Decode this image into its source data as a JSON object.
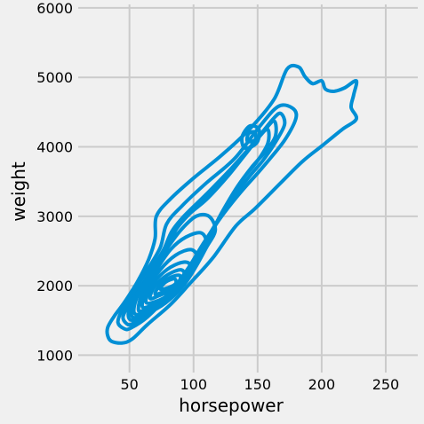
{
  "chart_data": {
    "type": "kde-contour",
    "title": "",
    "xlabel": "horsepower",
    "ylabel": "weight",
    "xlim": [
      10,
      275
    ],
    "ylim": [
      750,
      6050
    ],
    "x_ticks": [
      50,
      100,
      150,
      200,
      250
    ],
    "y_ticks": [
      1000,
      2000,
      3000,
      4000,
      5000,
      6000
    ],
    "grid": true,
    "line_color": "#008fd5",
    "grid_color": "#cbcbcb",
    "background_color": "#f0f0f0",
    "contour_levels": [
      {
        "level": 1,
        "points": [
          [
            44,
            1175
          ],
          [
            36,
            1200
          ],
          [
            33,
            1280
          ],
          [
            33,
            1400
          ],
          [
            38,
            1560
          ],
          [
            46,
            1760
          ],
          [
            56,
            2050
          ],
          [
            65,
            2380
          ],
          [
            70,
            2680
          ],
          [
            71,
            3000
          ],
          [
            82,
            3250
          ],
          [
            100,
            3550
          ],
          [
            122,
            3880
          ],
          [
            145,
            4280
          ],
          [
            163,
            4690
          ],
          [
            173,
            5120
          ],
          [
            182,
            5150
          ],
          [
            187,
            5010
          ],
          [
            193,
            4910
          ],
          [
            200,
            4950
          ],
          [
            203,
            4830
          ],
          [
            210,
            4800
          ],
          [
            218,
            4850
          ],
          [
            227,
            4950
          ],
          [
            225,
            4750
          ],
          [
            223,
            4570
          ],
          [
            227,
            4400
          ],
          [
            216,
            4250
          ],
          [
            200,
            4010
          ],
          [
            185,
            3790
          ],
          [
            168,
            3480
          ],
          [
            148,
            3110
          ],
          [
            133,
            2860
          ],
          [
            115,
            2400
          ],
          [
            98,
            2050
          ],
          [
            82,
            1730
          ],
          [
            64,
            1440
          ],
          [
            52,
            1230
          ],
          [
            44,
            1175
          ]
        ]
      },
      {
        "level": 2,
        "points": [
          [
            46,
            1380
          ],
          [
            41,
            1470
          ],
          [
            44,
            1640
          ],
          [
            53,
            1900
          ],
          [
            63,
            2200
          ],
          [
            74,
            2550
          ],
          [
            79,
            2890
          ],
          [
            91,
            3150
          ],
          [
            110,
            3480
          ],
          [
            132,
            3830
          ],
          [
            151,
            4280
          ],
          [
            166,
            4580
          ],
          [
            177,
            4560
          ],
          [
            180,
            4420
          ],
          [
            172,
            4120
          ],
          [
            161,
            3860
          ],
          [
            150,
            3620
          ],
          [
            137,
            3350
          ],
          [
            122,
            3000
          ],
          [
            108,
            2620
          ],
          [
            95,
            2230
          ],
          [
            80,
            1860
          ],
          [
            64,
            1550
          ],
          [
            51,
            1390
          ],
          [
            46,
            1380
          ]
        ]
      },
      {
        "level": 3,
        "points": [
          [
            48,
            1450
          ],
          [
            45,
            1560
          ],
          [
            52,
            1800
          ],
          [
            63,
            2100
          ],
          [
            75,
            2450
          ],
          [
            83,
            2780
          ],
          [
            93,
            3010
          ],
          [
            110,
            3320
          ],
          [
            130,
            3700
          ],
          [
            148,
            4080
          ],
          [
            162,
            4400
          ],
          [
            168,
            4480
          ],
          [
            171,
            4320
          ],
          [
            163,
            4040
          ],
          [
            154,
            3800
          ],
          [
            143,
            3560
          ],
          [
            130,
            3250
          ],
          [
            117,
            2880
          ],
          [
            104,
            2480
          ],
          [
            91,
            2120
          ],
          [
            76,
            1800
          ],
          [
            61,
            1540
          ],
          [
            52,
            1450
          ],
          [
            48,
            1450
          ]
        ]
      },
      {
        "level": 4,
        "points": [
          [
            50,
            1520
          ],
          [
            50,
            1680
          ],
          [
            58,
            1950
          ],
          [
            70,
            2320
          ],
          [
            82,
            2660
          ],
          [
            90,
            2920
          ],
          [
            104,
            3180
          ],
          [
            122,
            3520
          ],
          [
            140,
            3900
          ],
          [
            155,
            4230
          ],
          [
            163,
            4370
          ],
          [
            164,
            4160
          ],
          [
            157,
            3950
          ],
          [
            146,
            3720
          ],
          [
            134,
            3420
          ],
          [
            122,
            3050
          ],
          [
            112,
            2700
          ],
          [
            100,
            2340
          ],
          [
            86,
            1990
          ],
          [
            70,
            1700
          ],
          [
            57,
            1530
          ],
          [
            50,
            1520
          ]
        ]
      },
      {
        "level": 5,
        "points": [
          [
            52,
            1560
          ],
          [
            52,
            1760
          ],
          [
            61,
            2020
          ],
          [
            73,
            2400
          ],
          [
            84,
            2750
          ],
          [
            96,
            3020
          ],
          [
            110,
            3240
          ],
          [
            126,
            3560
          ],
          [
            140,
            3880
          ],
          [
            152,
            4160
          ],
          [
            158,
            4250
          ],
          [
            158,
            4050
          ],
          [
            150,
            3800
          ],
          [
            139,
            3550
          ],
          [
            130,
            3300
          ],
          [
            120,
            2980
          ],
          [
            110,
            2600
          ],
          [
            98,
            2250
          ],
          [
            84,
            1930
          ],
          [
            68,
            1670
          ],
          [
            58,
            1560
          ],
          [
            52,
            1560
          ]
        ]
      },
      {
        "level": 6,
        "points": [
          [
            54,
            1600
          ],
          [
            56,
            1840
          ],
          [
            66,
            2140
          ],
          [
            78,
            2500
          ],
          [
            90,
            2800
          ],
          [
            102,
            3000
          ],
          [
            112,
            3000
          ],
          [
            117,
            2800
          ],
          [
            110,
            2550
          ],
          [
            102,
            2280
          ],
          [
            92,
            2000
          ],
          [
            78,
            1750
          ],
          [
            65,
            1620
          ],
          [
            54,
            1600
          ]
        ]
      },
      {
        "level": 7,
        "points": [
          [
            57,
            1650
          ],
          [
            60,
            1900
          ],
          [
            70,
            2200
          ],
          [
            82,
            2520
          ],
          [
            94,
            2700
          ],
          [
            106,
            2760
          ],
          [
            110,
            2600
          ],
          [
            104,
            2380
          ],
          [
            96,
            2120
          ],
          [
            86,
            1900
          ],
          [
            74,
            1720
          ],
          [
            62,
            1650
          ],
          [
            57,
            1650
          ]
        ]
      },
      {
        "level": 8,
        "points": [
          [
            60,
            1700
          ],
          [
            64,
            1960
          ],
          [
            74,
            2230
          ],
          [
            86,
            2440
          ],
          [
            98,
            2520
          ],
          [
            103,
            2400
          ],
          [
            98,
            2210
          ],
          [
            90,
            2000
          ],
          [
            80,
            1830
          ],
          [
            68,
            1720
          ],
          [
            60,
            1700
          ]
        ]
      },
      {
        "level": 9,
        "points": [
          [
            63,
            1760
          ],
          [
            67,
            1990
          ],
          [
            77,
            2200
          ],
          [
            88,
            2320
          ],
          [
            96,
            2330
          ],
          [
            97,
            2210
          ],
          [
            91,
            2050
          ],
          [
            83,
            1900
          ],
          [
            73,
            1790
          ],
          [
            63,
            1760
          ]
        ]
      },
      {
        "level": 10,
        "points": [
          [
            66,
            1820
          ],
          [
            70,
            2000
          ],
          [
            80,
            2160
          ],
          [
            90,
            2230
          ],
          [
            93,
            2150
          ],
          [
            88,
            2030
          ],
          [
            80,
            1920
          ],
          [
            72,
            1850
          ],
          [
            66,
            1820
          ]
        ]
      },
      {
        "level": 11,
        "points": [
          [
            70,
            1880
          ],
          [
            74,
            2020
          ],
          [
            82,
            2120
          ],
          [
            89,
            2150
          ],
          [
            89,
            2070
          ],
          [
            83,
            1980
          ],
          [
            76,
            1910
          ],
          [
            70,
            1880
          ]
        ]
      },
      {
        "level": 12,
        "points": [
          [
            74,
            1950
          ],
          [
            78,
            2050
          ],
          [
            85,
            2100
          ],
          [
            86,
            2030
          ],
          [
            80,
            1970
          ],
          [
            74,
            1950
          ]
        ]
      },
      {
        "level": 13,
        "points": [
          [
            139,
            4000
          ],
          [
            138,
            4150
          ],
          [
            144,
            4300
          ],
          [
            151,
            4250
          ],
          [
            150,
            4080
          ],
          [
            144,
            3990
          ],
          [
            139,
            4000
          ]
        ]
      },
      {
        "level": 14,
        "points": [
          [
            142,
            4080
          ],
          [
            143,
            4190
          ],
          [
            148,
            4210
          ],
          [
            148,
            4100
          ],
          [
            142,
            4080
          ]
        ]
      }
    ]
  }
}
